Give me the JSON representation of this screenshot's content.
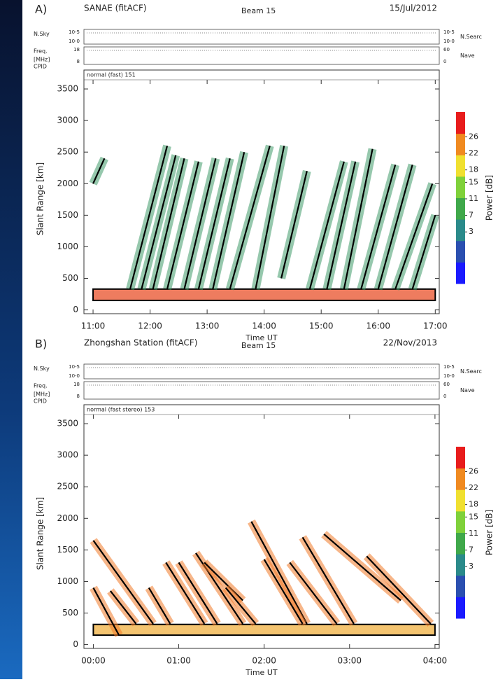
{
  "chart_data": [
    {
      "type": "range-time",
      "panel_label": "A)",
      "title": "SANAE (fitACF)",
      "beam": "Beam 15",
      "date": "15/Jul/2012",
      "header": {
        "rows": [
          {
            "label": [
              "N.Sky"
            ],
            "left": [
              "10-5",
              "10-0"
            ],
            "right": [
              "10-5",
              "10-0"
            ],
            "right_label": "N.Searc"
          },
          {
            "label": [
              "Freq.",
              "[MHz]"
            ],
            "left": [
              "18",
              "8"
            ],
            "right": [
              "60",
              "0"
            ],
            "right_label": "Nave"
          }
        ],
        "cpid": "CPID",
        "mode": "normal (fast) 151"
      },
      "xlabel": "Time UT",
      "ylabel": "Slant Range [km]",
      "xlim": [
        10.84,
        17.07
      ],
      "xticks": [
        {
          "value": 11,
          "label": "11:00"
        },
        {
          "value": 12,
          "label": "12:00"
        },
        {
          "value": 13,
          "label": "13:00"
        },
        {
          "value": 14,
          "label": "14:00"
        },
        {
          "value": 15,
          "label": "15:00"
        },
        {
          "value": 16,
          "label": "16:00"
        },
        {
          "value": 17,
          "label": "17:00"
        }
      ],
      "ylim": [
        -60,
        3800
      ],
      "yticks": [
        0,
        500,
        1000,
        1500,
        2000,
        2500,
        3000,
        3500
      ],
      "colorbar": {
        "label": "Power [dB]",
        "lim": [
          -9.5,
          32
        ],
        "ticks": [
          3,
          7,
          11,
          15,
          18,
          22,
          26
        ],
        "colors": [
          "#1a1aff",
          "#2a4fb0",
          "#2a8a8a",
          "#3fa84a",
          "#7fd13a",
          "#f0e030",
          "#f08a20",
          "#e81c1c"
        ]
      },
      "echo_color": "#3f9a6a",
      "box_color": "#e8502a",
      "box": {
        "x": [
          11.0,
          17.0
        ],
        "y": [
          150,
          330
        ]
      },
      "segments": [
        {
          "x": [
            11.0,
            11.2
          ],
          "y": [
            2000,
            2400
          ]
        },
        {
          "x": [
            11.65,
            12.3
          ],
          "y": [
            330,
            2600
          ]
        },
        {
          "x": [
            11.85,
            12.45
          ],
          "y": [
            330,
            2450
          ]
        },
        {
          "x": [
            12.05,
            12.6
          ],
          "y": [
            330,
            2400
          ]
        },
        {
          "x": [
            12.3,
            12.85
          ],
          "y": [
            330,
            2350
          ]
        },
        {
          "x": [
            12.6,
            13.15
          ],
          "y": [
            330,
            2400
          ]
        },
        {
          "x": [
            12.85,
            13.4
          ],
          "y": [
            330,
            2400
          ]
        },
        {
          "x": [
            13.1,
            13.65
          ],
          "y": [
            330,
            2500
          ]
        },
        {
          "x": [
            13.4,
            14.1
          ],
          "y": [
            330,
            2600
          ]
        },
        {
          "x": [
            13.85,
            14.35
          ],
          "y": [
            330,
            2600
          ]
        },
        {
          "x": [
            14.3,
            14.75
          ],
          "y": [
            500,
            2200
          ]
        },
        {
          "x": [
            14.8,
            15.4
          ],
          "y": [
            330,
            2350
          ]
        },
        {
          "x": [
            15.1,
            15.6
          ],
          "y": [
            330,
            2350
          ]
        },
        {
          "x": [
            15.4,
            15.9
          ],
          "y": [
            330,
            2550
          ]
        },
        {
          "x": [
            15.7,
            16.3
          ],
          "y": [
            330,
            2300
          ]
        },
        {
          "x": [
            16.0,
            16.6
          ],
          "y": [
            330,
            2300
          ]
        },
        {
          "x": [
            16.3,
            16.95
          ],
          "y": [
            330,
            2000
          ]
        },
        {
          "x": [
            16.6,
            17.0
          ],
          "y": [
            330,
            1500
          ]
        }
      ]
    },
    {
      "type": "range-time",
      "panel_label": "B)",
      "title": "Zhongshan Station (fitACF)",
      "beam": "Beam 15",
      "date": "22/Nov/2013",
      "header": {
        "rows": [
          {
            "label": [
              "N.Sky"
            ],
            "left": [
              "10-5",
              "10-0"
            ],
            "right": [
              "10-5",
              "10-0"
            ],
            "right_label": "N.Searc"
          },
          {
            "label": [
              "Freq.",
              "[MHz]"
            ],
            "left": [
              "18",
              "8"
            ],
            "right": [
              "60",
              "0"
            ],
            "right_label": "Nave"
          }
        ],
        "cpid": "CPID",
        "mode": "normal (fast stereo) 153"
      },
      "xlabel": "Time UT",
      "ylabel": "Slant Range [km]",
      "xlim": [
        -0.11,
        4.05
      ],
      "xticks": [
        {
          "value": 0,
          "label": "00:00"
        },
        {
          "value": 1,
          "label": "01:00"
        },
        {
          "value": 2,
          "label": "02:00"
        },
        {
          "value": 3,
          "label": "03:00"
        },
        {
          "value": 4,
          "label": "04:00"
        }
      ],
      "ylim": [
        -60,
        3800
      ],
      "yticks": [
        0,
        500,
        1000,
        1500,
        2000,
        2500,
        3000,
        3500
      ],
      "colorbar": {
        "label": "Power [dB]",
        "lim": [
          -9.5,
          32
        ],
        "ticks": [
          3,
          7,
          11,
          15,
          18,
          22,
          26
        ],
        "colors": [
          "#1a1aff",
          "#2a4fb0",
          "#2a8a8a",
          "#3fa84a",
          "#7fd13a",
          "#f0e030",
          "#f08a20",
          "#e81c1c"
        ]
      },
      "echo_color": "#f07a28",
      "box_color": "#f0b040",
      "box": {
        "x": [
          0.0,
          4.0
        ],
        "y": [
          150,
          320
        ]
      },
      "segments": [
        {
          "x": [
            0.0,
            0.7
          ],
          "y": [
            1650,
            330
          ]
        },
        {
          "x": [
            0.0,
            0.3
          ],
          "y": [
            900,
            150
          ]
        },
        {
          "x": [
            0.2,
            0.5
          ],
          "y": [
            850,
            330
          ]
        },
        {
          "x": [
            0.65,
            0.9
          ],
          "y": [
            900,
            330
          ]
        },
        {
          "x": [
            0.85,
            1.3
          ],
          "y": [
            1300,
            330
          ]
        },
        {
          "x": [
            1.0,
            1.45
          ],
          "y": [
            1300,
            330
          ]
        },
        {
          "x": [
            1.2,
            1.75
          ],
          "y": [
            1450,
            330
          ]
        },
        {
          "x": [
            1.3,
            1.75
          ],
          "y": [
            1300,
            700
          ]
        },
        {
          "x": [
            1.55,
            1.9
          ],
          "y": [
            900,
            330
          ]
        },
        {
          "x": [
            1.85,
            2.5
          ],
          "y": [
            1950,
            330
          ]
        },
        {
          "x": [
            2.0,
            2.45
          ],
          "y": [
            1350,
            330
          ]
        },
        {
          "x": [
            2.3,
            2.85
          ],
          "y": [
            1300,
            330
          ]
        },
        {
          "x": [
            2.45,
            3.05
          ],
          "y": [
            1700,
            330
          ]
        },
        {
          "x": [
            2.7,
            3.6
          ],
          "y": [
            1750,
            700
          ]
        },
        {
          "x": [
            3.2,
            3.95
          ],
          "y": [
            1400,
            330
          ]
        }
      ]
    }
  ]
}
